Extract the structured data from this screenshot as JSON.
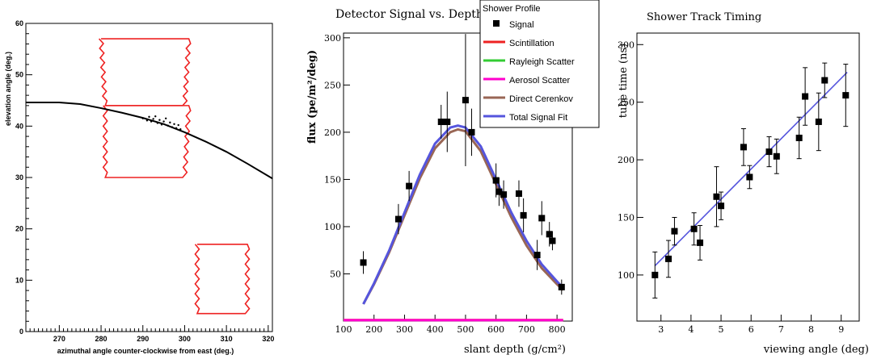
{
  "colors": {
    "red": "#ee2222",
    "black": "#000000",
    "blue": "#5555dd",
    "green": "#33cc33",
    "magenta": "#ff00cc",
    "brown": "#996655"
  },
  "chart_data": [
    {
      "type": "scatter",
      "title": "",
      "xlabel": "azimuthal angle counter-clockwise from east (deg.)",
      "ylabel": "elevation angle (deg.)",
      "xlim": [
        262,
        321
      ],
      "ylim": [
        0,
        60
      ],
      "xticks": [
        270,
        280,
        290,
        300,
        310,
        320
      ],
      "yticks": [
        0,
        10,
        20,
        30,
        40,
        50,
        60
      ],
      "mirror_outlines": [
        {
          "name": "",
          "points": [
            [
              280,
              57
            ],
            [
              301,
              57
            ],
            [
              300,
              44
            ],
            [
              281,
              44
            ]
          ]
        },
        {
          "name": "",
          "points": [
            [
              281,
              44
            ],
            [
              301,
              44
            ],
            [
              300,
              30
            ],
            [
              281,
              30
            ]
          ]
        },
        {
          "name": "",
          "points": [
            [
              303,
              17
            ],
            [
              315,
              17
            ],
            [
              315,
              3.5
            ],
            [
              303,
              3.5
            ]
          ]
        }
      ],
      "track_curve": {
        "x": [
          262,
          270,
          275,
          280,
          285,
          290,
          295,
          300,
          305,
          310,
          315,
          321
        ],
        "y": [
          44.6,
          44.6,
          44.3,
          43.5,
          42.6,
          41.6,
          40.4,
          38.8,
          37.0,
          35.0,
          32.7,
          29.8
        ]
      },
      "tube_hits": {
        "x": [
          290,
          291,
          291.5,
          292,
          292.5,
          293,
          293.5,
          294,
          294.5,
          295,
          295.5,
          296,
          296.5,
          297,
          297.5,
          298,
          298.5,
          299
        ],
        "y": [
          41.5,
          41.1,
          41.8,
          40.9,
          41.4,
          41.9,
          40.6,
          41.2,
          40.3,
          40.9,
          41.5,
          40.1,
          40.7,
          39.8,
          40.4,
          39.6,
          40.2,
          39.4
        ]
      }
    },
    {
      "type": "scatter",
      "title": "Detector Signal vs. Depth",
      "xlabel": "slant depth (g/cm²)",
      "ylabel": "flux (pe/m²/deg)",
      "xlim": [
        100,
        850
      ],
      "ylim": [
        0,
        305
      ],
      "xticks": [
        100,
        200,
        300,
        400,
        500,
        600,
        700,
        800
      ],
      "yticks": [
        50,
        100,
        150,
        200,
        250,
        300
      ],
      "legend": {
        "title": "Shower Profile",
        "placement": "top-right",
        "items": [
          {
            "label": "Signal",
            "kind": "marker"
          },
          {
            "label": "Scintillation",
            "color": "#ee2222"
          },
          {
            "label": "Rayleigh Scatter",
            "color": "#33cc33"
          },
          {
            "label": "Aerosol Scatter",
            "color": "#ff00cc"
          },
          {
            "label": "Direct Cerenkov",
            "color": "#996655"
          },
          {
            "label": "Total Signal Fit",
            "color": "#5555dd"
          }
        ]
      },
      "points": [
        {
          "x": 165,
          "y": 62,
          "err": 12
        },
        {
          "x": 280,
          "y": 108,
          "err": 16
        },
        {
          "x": 315,
          "y": 143,
          "err": 16
        },
        {
          "x": 420,
          "y": 211,
          "err": 18
        },
        {
          "x": 440,
          "y": 211,
          "err": 32
        },
        {
          "x": 500,
          "y": 234,
          "err": 70
        },
        {
          "x": 520,
          "y": 200,
          "err": 25
        },
        {
          "x": 600,
          "y": 149,
          "err": 18
        },
        {
          "x": 610,
          "y": 137,
          "err": 15
        },
        {
          "x": 625,
          "y": 134,
          "err": 15
        },
        {
          "x": 675,
          "y": 135,
          "err": 14
        },
        {
          "x": 690,
          "y": 112,
          "err": 18
        },
        {
          "x": 735,
          "y": 70,
          "err": 16
        },
        {
          "x": 750,
          "y": 109,
          "err": 18
        },
        {
          "x": 775,
          "y": 92,
          "err": 13
        },
        {
          "x": 785,
          "y": 85,
          "err": 10
        },
        {
          "x": 815,
          "y": 36,
          "err": 8
        }
      ],
      "series": [
        {
          "name": "Total Signal Fit",
          "color": "#5555dd",
          "x": [
            165,
            200,
            250,
            300,
            350,
            400,
            450,
            475,
            500,
            550,
            600,
            650,
            700,
            750,
            800,
            820
          ],
          "y": [
            18,
            40,
            75,
            115,
            155,
            188,
            205,
            207,
            205,
            185,
            150,
            115,
            85,
            60,
            42,
            35
          ]
        },
        {
          "name": "Direct Cerenkov",
          "color": "#996655",
          "x": [
            165,
            200,
            250,
            300,
            350,
            400,
            450,
            475,
            500,
            550,
            600,
            650,
            700,
            750,
            800,
            820
          ],
          "y": [
            18,
            39,
            73,
            112,
            151,
            183,
            200,
            203,
            201,
            180,
            145,
            110,
            80,
            56,
            39,
            33
          ]
        },
        {
          "name": "Scintillation",
          "color": "#ee2222",
          "x": [
            100,
            820
          ],
          "y": [
            1.5,
            1.5
          ]
        },
        {
          "name": "Rayleigh Scatter",
          "color": "#33cc33",
          "x": [
            100,
            820
          ],
          "y": [
            1,
            1
          ]
        },
        {
          "name": "Aerosol Scatter",
          "color": "#ff00cc",
          "x": [
            100,
            820
          ],
          "y": [
            1,
            1
          ]
        }
      ]
    },
    {
      "type": "scatter",
      "title": "Shower Track Timing",
      "xlabel": "viewing angle (deg)",
      "ylabel": "tube time (ns)",
      "xlim": [
        2.2,
        9.6
      ],
      "ylim": [
        60,
        310
      ],
      "xticks": [
        3,
        4,
        5,
        6,
        7,
        8,
        9
      ],
      "yticks": [
        100,
        150,
        200,
        250,
        300
      ],
      "points": [
        {
          "x": 2.8,
          "y": 100,
          "err": 20
        },
        {
          "x": 3.25,
          "y": 114,
          "err": 16
        },
        {
          "x": 3.45,
          "y": 138,
          "err": 12
        },
        {
          "x": 4.1,
          "y": 140,
          "err": 14
        },
        {
          "x": 4.3,
          "y": 128,
          "err": 15
        },
        {
          "x": 4.85,
          "y": 168,
          "err": 26
        },
        {
          "x": 5.0,
          "y": 160,
          "err": 12
        },
        {
          "x": 5.75,
          "y": 211,
          "err": 16
        },
        {
          "x": 5.95,
          "y": 185,
          "err": 10
        },
        {
          "x": 6.6,
          "y": 207,
          "err": 13
        },
        {
          "x": 6.85,
          "y": 203,
          "err": 15
        },
        {
          "x": 7.6,
          "y": 219,
          "err": 18
        },
        {
          "x": 7.8,
          "y": 255,
          "err": 25
        },
        {
          "x": 8.25,
          "y": 233,
          "err": 25
        },
        {
          "x": 8.45,
          "y": 269,
          "err": 15
        },
        {
          "x": 9.15,
          "y": 256,
          "err": 27
        }
      ],
      "fit_line": {
        "x": [
          2.8,
          9.2
        ],
        "y": [
          108,
          276
        ]
      }
    }
  ]
}
